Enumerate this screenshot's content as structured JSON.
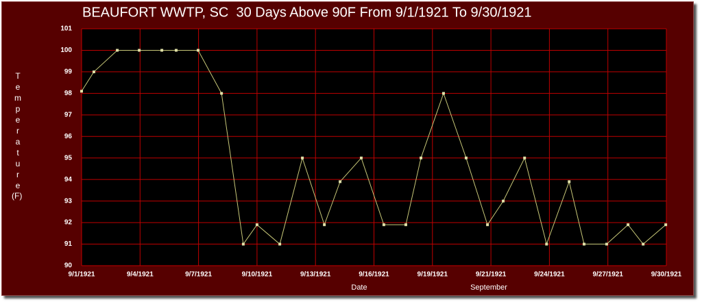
{
  "chart_data": {
    "type": "line",
    "title": "BEAUFORT WWTP, SC  30 Days Above 90F From 9/1/1921 To 9/30/1921",
    "y_label": "Temperature",
    "y_unit": "(F)",
    "x_label": "Date",
    "x_sublabel": "September",
    "x": [
      1,
      1.61,
      2.77,
      3.86,
      4.98,
      5.69,
      6.78,
      7.94,
      9.02,
      9.7,
      10.83,
      11.95,
      13.04,
      13.82,
      14.87,
      15.99,
      17.08,
      17.83,
      18.95,
      20.07,
      21.13,
      21.91,
      22.97,
      24.06,
      25.18,
      25.92,
      27.04,
      28.1,
      28.85,
      29.97
    ],
    "series": [
      {
        "color": "#c8c878",
        "values": [
          98.1,
          99,
          100,
          100,
          100,
          100,
          100,
          98,
          91,
          91.9,
          91,
          95,
          91.9,
          93.9,
          95,
          91.9,
          91.9,
          95,
          98,
          95,
          91.9,
          93,
          95,
          91,
          93.9,
          91,
          91,
          91.9,
          91,
          91.9
        ]
      }
    ],
    "xlim": [
      1,
      30
    ],
    "xticks": [
      {
        "value": 1,
        "label": "9/1/1921"
      },
      {
        "value": 3.9,
        "label": "9/4/1921"
      },
      {
        "value": 6.8,
        "label": "9/7/1921"
      },
      {
        "value": 9.7,
        "label": "9/10/1921"
      },
      {
        "value": 12.6,
        "label": "9/13/1921"
      },
      {
        "value": 15.5,
        "label": "9/16/1921"
      },
      {
        "value": 18.4,
        "label": "9/19/1921"
      },
      {
        "value": 21.3,
        "label": "9/21/1921"
      },
      {
        "value": 24.2,
        "label": "9/24/1921"
      },
      {
        "value": 27.1,
        "label": "9/27/1921"
      },
      {
        "value": 30,
        "label": "9/30/1921"
      }
    ],
    "ylim": [
      90,
      101
    ],
    "yticks": [
      90,
      91,
      92,
      93,
      94,
      95,
      96,
      97,
      98,
      99,
      100,
      101
    ],
    "grid": true,
    "grid_color": "#c00000",
    "plot_background": "#000000",
    "marker_color": "#e0e0a8"
  }
}
